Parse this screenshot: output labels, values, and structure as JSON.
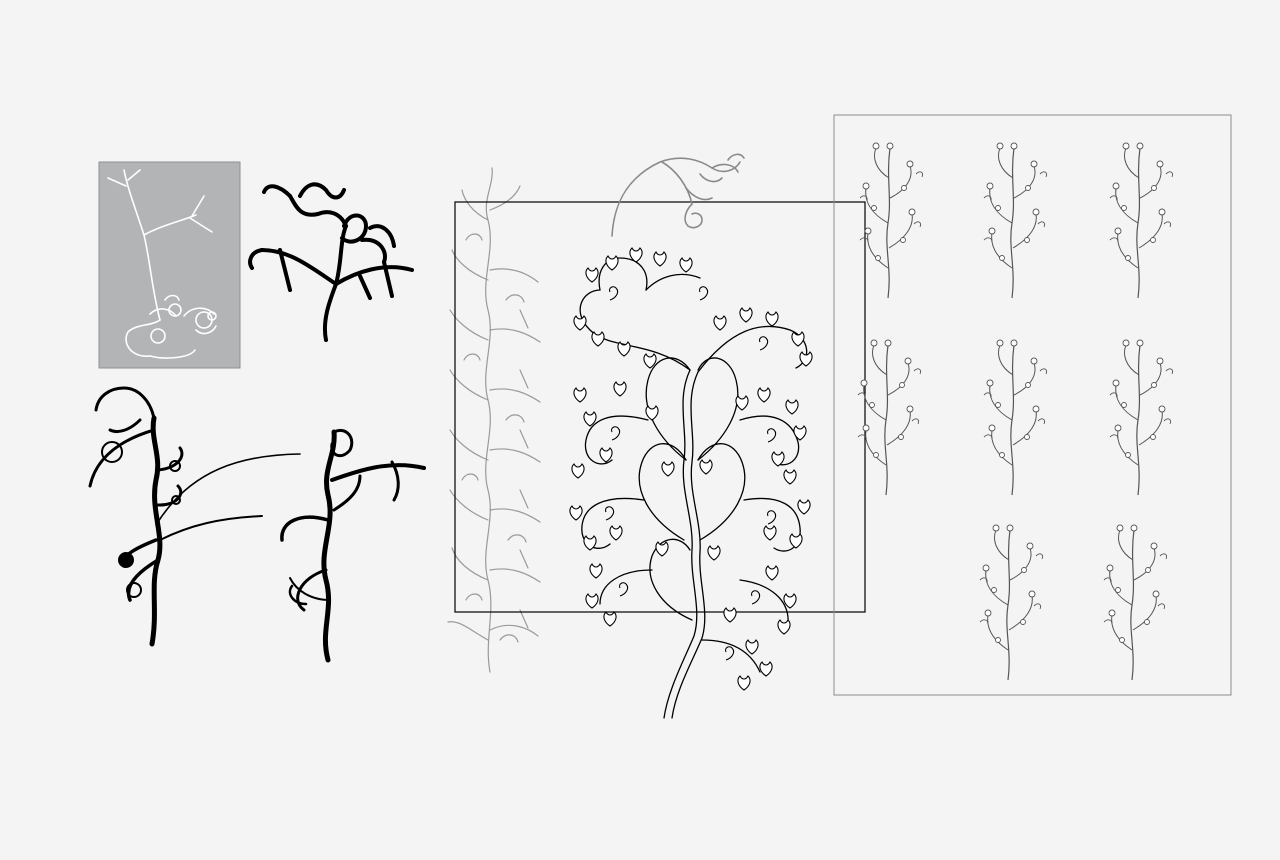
{
  "canvas": {
    "background": "#f4f4f4",
    "artwork_stroke": "#000000",
    "guide_stroke": "#9a9a9a",
    "swatch_fill": "#b3b4b6",
    "swatch_stroke": "#ffffff"
  },
  "panels": {
    "swatch": "grey-sketch-swatch",
    "sheet": "vine-variation-sheet",
    "sheet_columns": 3,
    "sheet_rows": 3,
    "sheet_empty_cells": 1
  }
}
